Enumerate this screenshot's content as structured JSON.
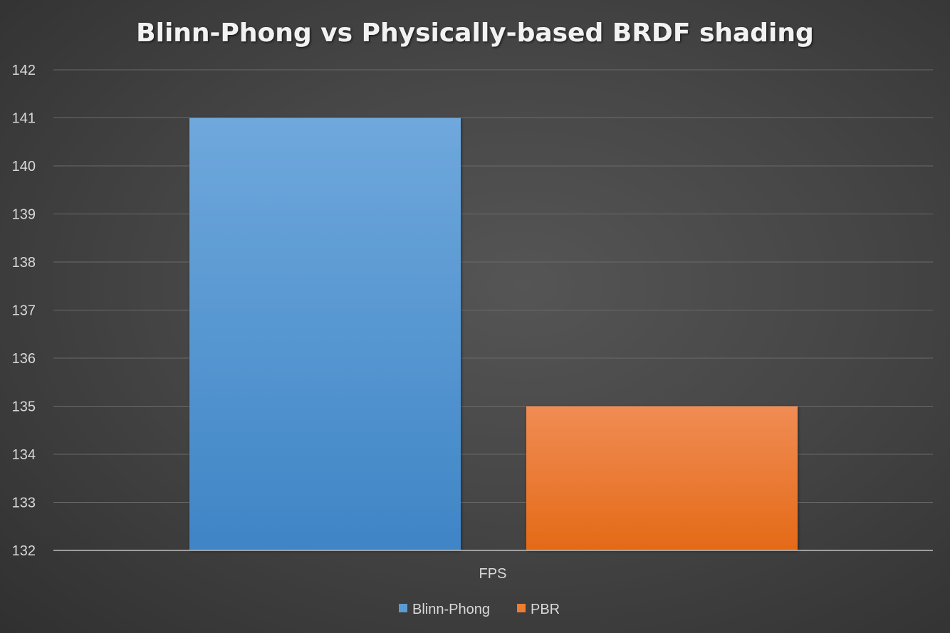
{
  "chart_data": {
    "type": "bar",
    "title": "Blinn-Phong vs Physically-based BRDF shading",
    "categories": [
      "FPS"
    ],
    "series": [
      {
        "name": "Blinn-Phong",
        "values": [
          141
        ],
        "color": "#5b9bd5"
      },
      {
        "name": "PBR",
        "values": [
          135
        ],
        "color": "#ed7d31"
      }
    ],
    "ylim": [
      132,
      142
    ],
    "yticks": [
      132,
      133,
      134,
      135,
      136,
      137,
      138,
      139,
      140,
      141,
      142
    ],
    "grid": true,
    "legend": "bottom",
    "xlabel": "",
    "ylabel": ""
  }
}
